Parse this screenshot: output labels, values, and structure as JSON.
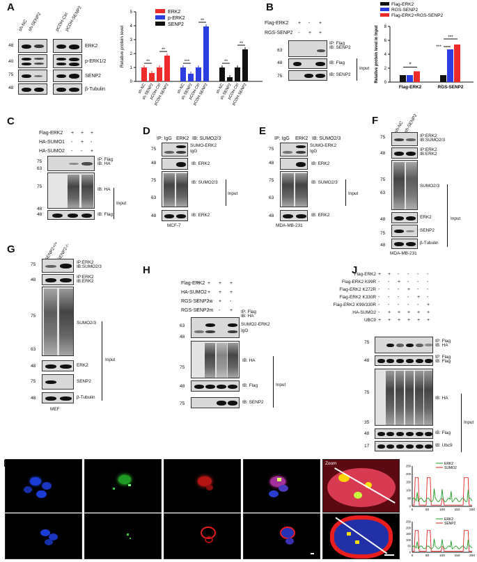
{
  "panels": {
    "A": "A",
    "B": "B",
    "C": "C",
    "D": "D",
    "E": "E",
    "F": "F",
    "G": "G",
    "H": "H",
    "I": "I",
    "J": "J"
  },
  "A": {
    "lanes": [
      "sh-NC",
      "sh-SENP2",
      "pCDH-Ctrl",
      "pCDH-SENP2"
    ],
    "rows": [
      {
        "mw": "48",
        "label": "ERK2"
      },
      {
        "mw": "40",
        "label": "p-ERK1/2"
      },
      {
        "mw": "75",
        "label": "SENP2"
      },
      {
        "mw": "48",
        "label": "β-Tubulin"
      }
    ]
  },
  "chartA": {
    "legend": [
      "ERK2",
      "p-ERK2",
      "SENP2"
    ],
    "ylabel": "Relative protein level",
    "yticks": [
      "0",
      "1",
      "2",
      "3",
      "4",
      "5"
    ],
    "xgroups": [
      [
        "sh-NC",
        "sh-SENP2",
        "pCDH-Ctrl",
        "pCDH-SENP2"
      ],
      [
        "sh-NC",
        "sh-SENP2",
        "pCDH-Ctrl",
        "pCDH-SENP2"
      ],
      [
        "sh-NC",
        "sh-SENP2",
        "pCDH-Ctrl",
        "pCDH-SENP2"
      ]
    ],
    "sig": [
      "**",
      "**",
      "***",
      "**",
      "**",
      "**"
    ]
  },
  "chart_data": [
    {
      "type": "bar",
      "ylabel": "Relative protein level",
      "ylim": [
        0,
        5
      ],
      "categories": [
        "sh-NC",
        "sh-SENP2",
        "pCDH-Ctrl",
        "pCDH-SENP2"
      ],
      "series": [
        {
          "name": "ERK2",
          "values": [
            1.0,
            0.6,
            1.0,
            1.85
          ]
        },
        {
          "name": "p-ERK2",
          "values": [
            1.0,
            0.55,
            1.0,
            3.95
          ]
        },
        {
          "name": "SENP2",
          "values": [
            1.0,
            0.3,
            1.0,
            2.3
          ]
        }
      ],
      "colors": [
        "#ee2b2b",
        "#2c3ee0",
        "#111111"
      ],
      "annotations": [
        "**",
        "**",
        "***",
        "**",
        "**",
        "**"
      ]
    },
    {
      "type": "bar",
      "ylabel": "Relative protein level in Input",
      "ylim": [
        0,
        8
      ],
      "categories": [
        "Flag-ERK2",
        "RGS-SENP2"
      ],
      "series": [
        {
          "name": "Flag-ERK2",
          "values": [
            1.0,
            1.0
          ]
        },
        {
          "name": "RGS-SENP2",
          "values": [
            1.0,
            4.7
          ]
        },
        {
          "name": "Flag-ERK2+RGS-SENP2",
          "values": [
            1.55,
            5.4
          ]
        }
      ],
      "colors": [
        "#111111",
        "#2c3ee0",
        "#ee2b2b"
      ],
      "annotations": [
        "*",
        "***",
        "***"
      ]
    }
  ],
  "B": {
    "conds": [
      {
        "label": "Flag-ERK2",
        "signs": [
          "+",
          "-",
          "+"
        ]
      },
      {
        "label": "RGS-SENP2",
        "signs": [
          "-",
          "+",
          "+"
        ]
      }
    ],
    "ip": "IP: Flag\nIB: SENP2",
    "mw": [
      "63",
      "48",
      "75"
    ],
    "ib": [
      "IB: Flag",
      "IB: SENP2"
    ],
    "input": "Input"
  },
  "chartB": {
    "legend": [
      "Flag-ERK2",
      "RGS-SENP2",
      "Flag-ERK2+RGS-SENP2"
    ],
    "ylabel": "Relative protein level in Input",
    "yticks": [
      "0",
      "2",
      "4",
      "6",
      "8"
    ],
    "xcats": [
      "Flag-ERK2",
      "RGS-SENP2"
    ],
    "sig": [
      "*",
      "***",
      "***"
    ]
  },
  "C": {
    "conds": [
      {
        "label": "Flag-ERK2",
        "signs": [
          "+",
          "+",
          "+"
        ]
      },
      {
        "label": "HA-SUMO1",
        "signs": [
          "-",
          "+",
          "-"
        ]
      },
      {
        "label": "HA-SUMO2",
        "signs": [
          "-",
          "-",
          "+"
        ]
      }
    ],
    "ip": "IP: Flag\nIB: HA",
    "mw": [
      "75",
      "63",
      "75",
      "48",
      "48"
    ],
    "ib": [
      "IB: HA",
      "IB: Flag"
    ],
    "input": "Input"
  },
  "D": {
    "head": [
      "IP: IgG",
      "ERK2",
      "IB: SUMO2/3"
    ],
    "mw": [
      "75",
      "48",
      "75",
      "63",
      "48"
    ],
    "sumo": "SUMO-ERK2",
    "igg": "IgG",
    "ib": [
      "IB: ERK2",
      "IB: SUMO2/3",
      "IB: ERK2"
    ],
    "input": "Input",
    "cell": "MCF-7"
  },
  "E": {
    "head": [
      "IP: IgG",
      "ERK2",
      "IB: SUMO2/3"
    ],
    "mw": [
      "75",
      "48",
      "75",
      "63",
      "48"
    ],
    "sumo": "SUMO-ERK2",
    "igg": "IgG",
    "ib": [
      "IB: ERK2",
      "IB: SUMO2/3",
      "IB: ERK2"
    ],
    "input": "Input",
    "cell": "MDA-MB-231"
  },
  "F": {
    "lanes": [
      "sh-NC",
      "sh-SENP2"
    ],
    "mw": [
      "75",
      "48",
      "75",
      "63",
      "48",
      "75",
      "48"
    ],
    "ib": [
      "IP:ERK2\nIB:SUMO2/3",
      "IP:ERK2\nIB:ERK2",
      "SUMO2/3",
      "ERK2",
      "SENP2",
      "β-Tubulin"
    ],
    "input": "Input",
    "cell": "MDA-MB-231"
  },
  "G": {
    "lanes": [
      "SENP2+/+",
      "SENP2-/-"
    ],
    "mw": [
      "75",
      "48",
      "75",
      "63",
      "48",
      "75",
      "48"
    ],
    "ib": [
      "IP:ERK2\nIB:SUMO2/3",
      "IP:ERK2\nIB:ERK2",
      "SUMO2/3",
      "ERK2",
      "SENP2",
      "β-Tubulin"
    ],
    "input": "Input",
    "cell": "MEF"
  },
  "H": {
    "conds": [
      {
        "label": "Flag-ERK2",
        "signs": [
          "+",
          "+",
          "+",
          "+"
        ]
      },
      {
        "label": "HA-SUMO2",
        "signs": [
          "-",
          "+",
          "+",
          "+"
        ]
      },
      {
        "label": "RGS-SENP2w",
        "signs": [
          "-",
          "-",
          "+",
          "-"
        ]
      },
      {
        "label": "RGS-SENP2m",
        "signs": [
          "-",
          "-",
          "-",
          "+"
        ]
      }
    ],
    "ip": "IP: Flag\nIB: HA",
    "mw": [
      "63",
      "48",
      "75",
      "48",
      "75"
    ],
    "sumo": "SUMO2-ERK2",
    "igg": "IgG",
    "ib": [
      "IB: HA",
      "IB: Flag",
      "IB: SENP2"
    ],
    "input": "Input"
  },
  "J": {
    "conds": [
      {
        "label": "Flag-ERK2",
        "signs": [
          "+",
          "+",
          "-",
          "-",
          "-",
          "-"
        ]
      },
      {
        "label": "Flag-ERK2 K99R",
        "signs": [
          "-",
          "-",
          "+",
          "-",
          "-",
          "-"
        ]
      },
      {
        "label": "Flag-ERK2 K272R",
        "signs": [
          "-",
          "-",
          "-",
          "+",
          "-",
          "-"
        ]
      },
      {
        "label": "Flag-ERK2 K330R",
        "signs": [
          "-",
          "-",
          "-",
          "-",
          "+",
          "-"
        ]
      },
      {
        "label": "Flag-ERK2 K99/330R",
        "signs": [
          "-",
          "-",
          "-",
          "-",
          "-",
          "+"
        ]
      },
      {
        "label": "HA-SUMO2",
        "signs": [
          "-",
          "+",
          "+",
          "+",
          "+",
          "+"
        ]
      },
      {
        "label": "UBC9",
        "signs": [
          "+",
          "+",
          "+",
          "+",
          "+",
          "+"
        ]
      }
    ],
    "mw": [
      "75",
      "48",
      "75",
      "35",
      "48",
      "17"
    ],
    "ib": [
      "IP: Flag\nIB: HA",
      "IP: Flag\nIB: Flag",
      "IB: HA",
      "IB: Flag",
      "IB: Ubc9"
    ],
    "input": "Input"
  },
  "I": {
    "zoom": "Zoom",
    "plot1": {
      "legend": [
        "ERK2",
        "SUMO2"
      ],
      "xticks": [
        "0",
        "50",
        "100",
        "150",
        "200"
      ],
      "yticks": [
        "0",
        "50",
        "100",
        "150",
        "200",
        "250"
      ]
    },
    "plot2": {
      "legend": [
        "ERK2",
        "SENP2"
      ],
      "xticks": [
        "0",
        "50",
        "100",
        "150",
        "200"
      ],
      "yticks": [
        "0",
        "50",
        "100",
        "150",
        "200",
        "250"
      ]
    }
  }
}
